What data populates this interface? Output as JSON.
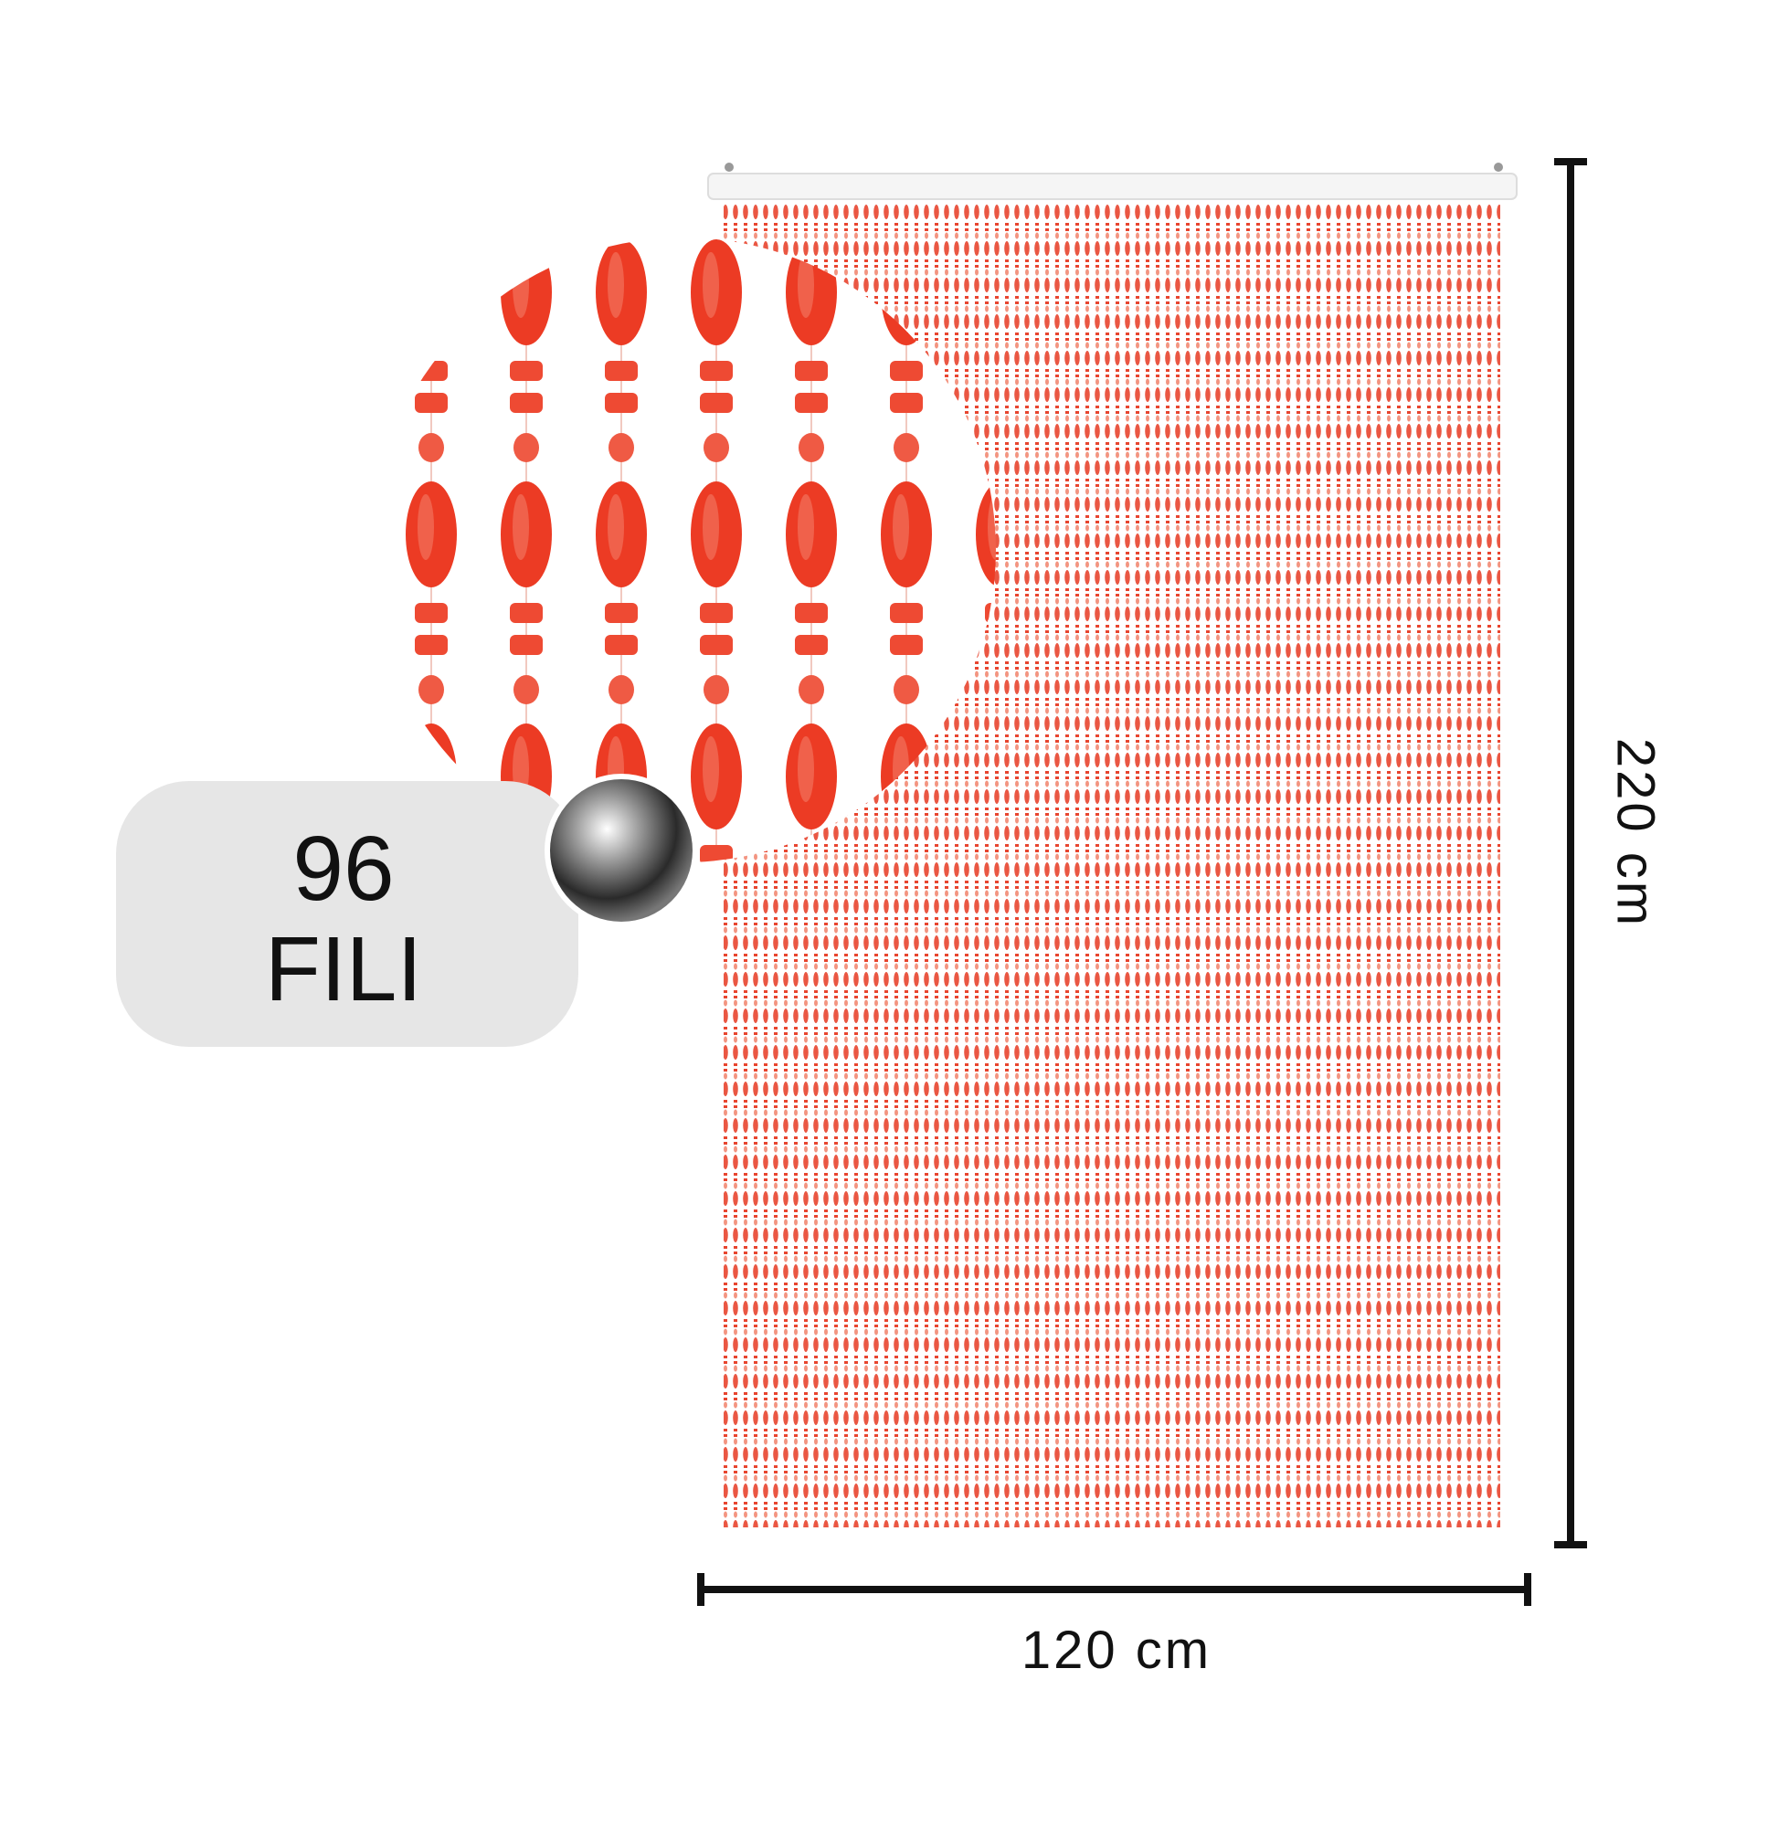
{
  "badge": {
    "count": "96",
    "label": "FILI"
  },
  "dimensions": {
    "height": "220 cm",
    "width": "120 cm"
  }
}
